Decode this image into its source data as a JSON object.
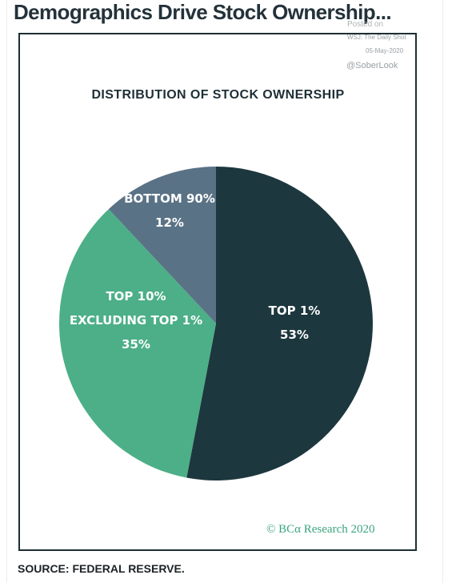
{
  "headline": "Demographics Drive Stock Ownership...",
  "watermark": {
    "posted": "Posted on",
    "source": "WSJ: The Daily Shot",
    "date": "05-May-2020",
    "handle": "@SoberLook"
  },
  "colors": {
    "top1": "#1d373e",
    "top10_excl": "#4caf88",
    "bottom90": "#5a7285",
    "frame": "#1c2e33",
    "credit": "#3aa57e"
  },
  "chart_data": {
    "type": "pie",
    "title": "DISTRIBUTION OF STOCK OWNERSHIP",
    "slices": [
      {
        "label_lines": [
          "TOP 1%"
        ],
        "value": 53,
        "value_label": "53%"
      },
      {
        "label_lines": [
          "TOP 10%",
          "EXCLUDING TOP 1%"
        ],
        "value": 35,
        "value_label": "35%"
      },
      {
        "label_lines": [
          "BOTTOM 90%"
        ],
        "value": 12,
        "value_label": "12%"
      }
    ]
  },
  "credit": "© BCα Research 2020",
  "source": "SOURCE: FEDERAL RESERVE."
}
